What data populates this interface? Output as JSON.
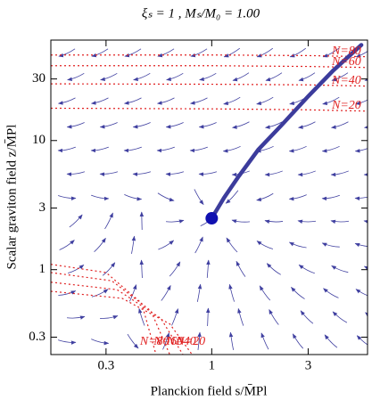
{
  "chart_data": {
    "type": "streamplot",
    "title": "ξₛ = 1 , Mₛ/M₀ = 1.00",
    "xlabel": "Planckion field s/M̄Pl",
    "ylabel": "Scalar graviton field z/M̄Pl",
    "xscale": "log",
    "yscale": "log",
    "xlim": [
      0.16,
      5.9
    ],
    "ylim": [
      0.22,
      60
    ],
    "xticks": [
      0.3,
      1,
      3
    ],
    "yticks": [
      0.3,
      1,
      3,
      10,
      30
    ],
    "stream_color": "#4040a0",
    "trajectory": {
      "color": "#3c3c9c",
      "x": [
        1,
        1.15,
        1.35,
        1.7,
        2.2,
        3,
        4,
        5.5
      ],
      "y": [
        2.5,
        3.6,
        5.2,
        8.5,
        13,
        22,
        35,
        55
      ]
    },
    "point": {
      "x": 1,
      "y": 2.5,
      "color": "#1010b0"
    },
    "contour_color": "#e02020",
    "contours": [
      {
        "label": "N=80",
        "x": [
          0.16,
          1,
          3,
          5.9
        ],
        "y": [
          46,
          46,
          45.5,
          44.6
        ]
      },
      {
        "label": "N=60",
        "x": [
          0.16,
          1,
          3,
          5.9
        ],
        "y": [
          38,
          38,
          37.5,
          36.8
        ]
      },
      {
        "label": "N=40",
        "x": [
          0.16,
          1,
          3,
          5.9
        ],
        "y": [
          27.5,
          27.3,
          27,
          26.4
        ]
      },
      {
        "label": "N=20",
        "x": [
          0.16,
          1,
          3,
          5.9
        ],
        "y": [
          17.8,
          17.6,
          17.3,
          16.9
        ]
      },
      {
        "label": "N=80",
        "x": [
          0.16,
          0.3,
          0.45,
          0.53
        ],
        "y": [
          1.1,
          0.95,
          0.55,
          0.22
        ]
      },
      {
        "label": "N=60",
        "x": [
          0.16,
          0.32,
          0.5,
          0.62
        ],
        "y": [
          0.95,
          0.82,
          0.48,
          0.22
        ]
      },
      {
        "label": "N=40",
        "x": [
          0.16,
          0.34,
          0.56,
          0.72
        ],
        "y": [
          0.8,
          0.7,
          0.42,
          0.22
        ]
      },
      {
        "label": "N=20",
        "x": [
          0.16,
          0.36,
          0.62,
          0.8
        ],
        "y": [
          0.68,
          0.6,
          0.38,
          0.22
        ]
      }
    ]
  }
}
